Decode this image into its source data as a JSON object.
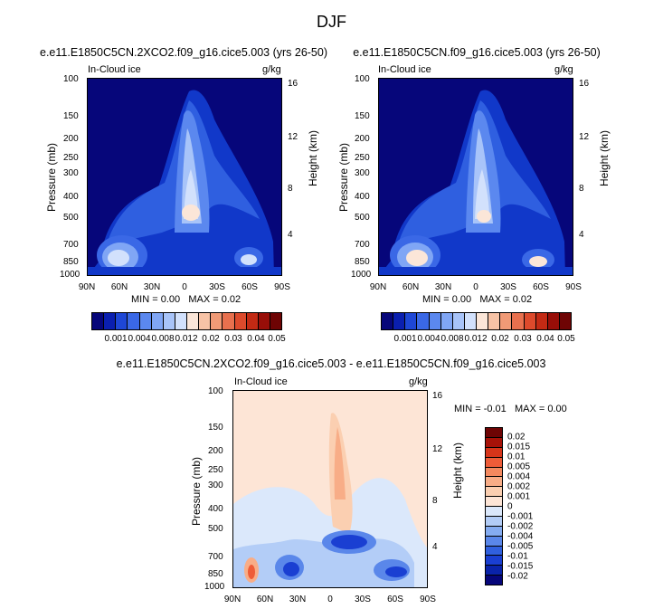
{
  "figure": {
    "title": "DJF"
  },
  "chart_data": [
    {
      "type": "heatmap",
      "title": "e.e11.E1850C5CN.2XCO2.f09_g16.cice5.003 (yrs 26-50)",
      "variable_label": "In-Cloud ice",
      "units_label": "g/kg",
      "ylabel": "Pressure (mb)",
      "y2label": "Height (km)",
      "x_ticks": [
        "90N",
        "60N",
        "30N",
        "0",
        "30S",
        "60S",
        "90S"
      ],
      "y_ticks": [
        "100",
        "150",
        "200",
        "250",
        "300",
        "400",
        "500",
        "700",
        "850",
        "1000"
      ],
      "y2_ticks": [
        "16",
        "12",
        "8",
        "4"
      ],
      "min_label": "MIN =",
      "min_value": "0.00",
      "max_label": "MAX =",
      "max_value": "0.02"
    },
    {
      "type": "heatmap",
      "title": "e.e11.E1850C5CN.f09_g16.cice5.003 (yrs 26-50)",
      "variable_label": "In-Cloud ice",
      "units_label": "g/kg",
      "ylabel": "Pressure (mb)",
      "y2label": "Height (km)",
      "x_ticks": [
        "90N",
        "60N",
        "30N",
        "0",
        "30S",
        "60S",
        "90S"
      ],
      "y_ticks": [
        "100",
        "150",
        "200",
        "250",
        "300",
        "400",
        "500",
        "700",
        "850",
        "1000"
      ],
      "y2_ticks": [
        "16",
        "12",
        "8",
        "4"
      ],
      "min_label": "MIN =",
      "min_value": "0.00",
      "max_label": "MAX =",
      "max_value": "0.02"
    },
    {
      "type": "heatmap",
      "title": "e.e11.E1850C5CN.2XCO2.f09_g16.cice5.003 - e.e11.E1850C5CN.f09_g16.cice5.003",
      "variable_label": "In-Cloud ice",
      "units_label": "g/kg",
      "ylabel": "Pressure (mb)",
      "y2label": "Height (km)",
      "x_ticks": [
        "90N",
        "60N",
        "30N",
        "0",
        "30S",
        "60S",
        "90S"
      ],
      "y_ticks": [
        "100",
        "150",
        "200",
        "250",
        "300",
        "400",
        "500",
        "700",
        "850",
        "1000"
      ],
      "y2_ticks": [
        "16",
        "12",
        "8",
        "4"
      ],
      "min_label": "MIN =",
      "min_value": "-0.01",
      "max_label": "MAX =",
      "max_value": "0.00"
    }
  ],
  "colorbar_top": {
    "colors": [
      "#06067a",
      "#0a1fb0",
      "#1e47d6",
      "#3a68e6",
      "#5b88ef",
      "#80a6f5",
      "#a8c4f9",
      "#d2e1fc",
      "#fbe6d8",
      "#f7c3a6",
      "#f09a76",
      "#e8704e",
      "#dd4a2c",
      "#c32a14",
      "#980e08",
      "#6e0404"
    ],
    "labels": [
      "0.001",
      "0.004",
      "0.008",
      "0.012",
      "0.02",
      "0.03",
      "0.04",
      "0.05"
    ]
  },
  "colorbar_diff": {
    "colors": [
      "#6e0404",
      "#a71208",
      "#d7351a",
      "#ee5c38",
      "#f4895f",
      "#f8ad87",
      "#fbcfb1",
      "#fde5d6",
      "#dbe8fb",
      "#b3cdf7",
      "#85acf1",
      "#5a87ea",
      "#3060df",
      "#1a3fd2",
      "#0a23aa"
    ],
    "labels": [
      "0.02",
      "0.015",
      "0.01",
      "0.005",
      "0.004",
      "0.002",
      "0.001",
      "0",
      "-0.001",
      "-0.002",
      "-0.004",
      "-0.005",
      "-0.01",
      "-0.015",
      "-0.02"
    ]
  }
}
